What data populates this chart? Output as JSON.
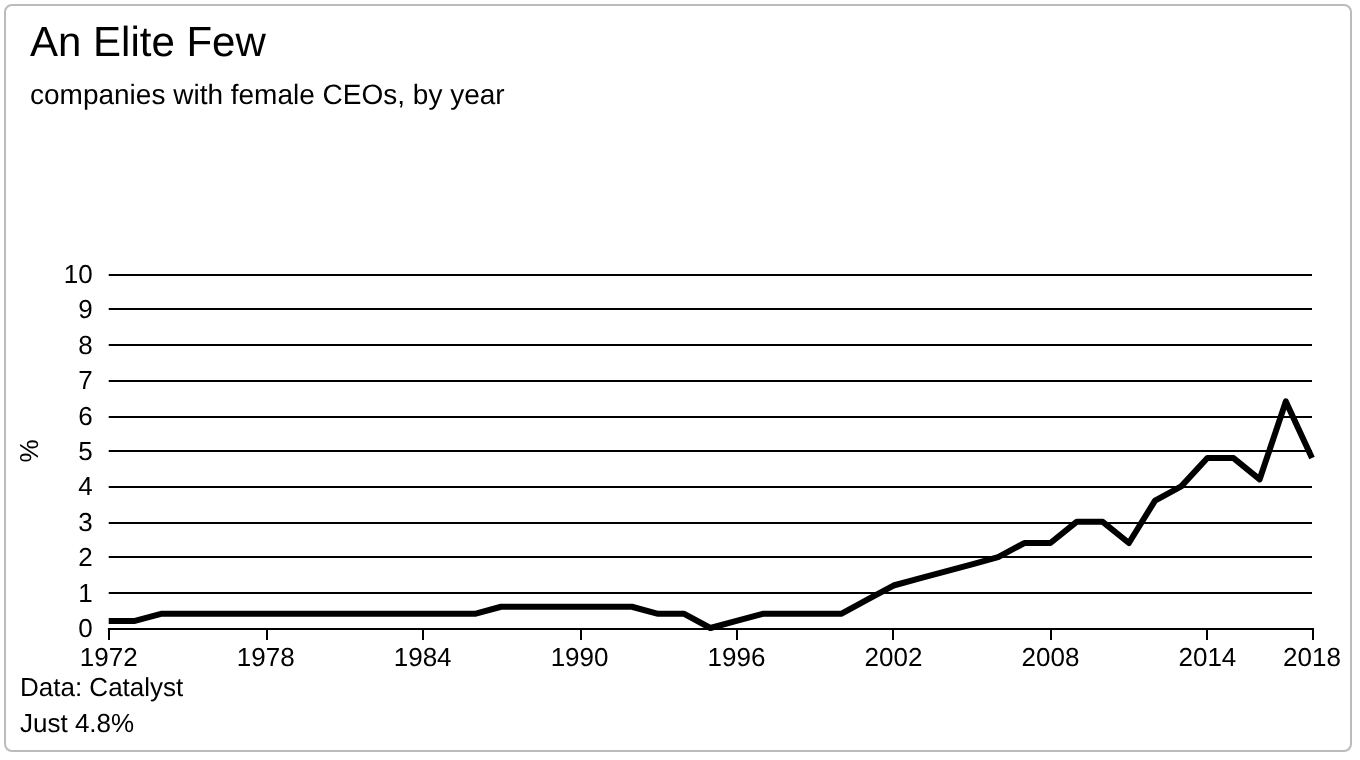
{
  "chart_data": {
    "type": "line",
    "title": "An Elite Few",
    "subtitle": "companies with female CEOs, by year",
    "ylabel": "%",
    "x": [
      1972,
      1973,
      1974,
      1975,
      1976,
      1977,
      1978,
      1979,
      1980,
      1981,
      1982,
      1983,
      1984,
      1985,
      1986,
      1987,
      1988,
      1989,
      1990,
      1991,
      1992,
      1993,
      1994,
      1995,
      1996,
      1997,
      1998,
      1999,
      2000,
      2001,
      2002,
      2003,
      2004,
      2005,
      2006,
      2007,
      2008,
      2009,
      2010,
      2011,
      2012,
      2013,
      2014,
      2015,
      2016,
      2017,
      2018
    ],
    "series": [
      {
        "color": "#000000",
        "values": [
          0.2,
          0.2,
          0.4,
          0.4,
          0.4,
          0.4,
          0.4,
          0.4,
          0.4,
          0.4,
          0.4,
          0.4,
          0.4,
          0.4,
          0.4,
          0.6,
          0.6,
          0.6,
          0.6,
          0.6,
          0.6,
          0.4,
          0.4,
          0,
          0.2,
          0.4,
          0.4,
          0.4,
          0.4,
          0.8,
          1.2,
          1.4,
          1.6,
          1.8,
          2.0,
          2.4,
          2.4,
          3.0,
          3.0,
          2.4,
          3.6,
          4.0,
          4.8,
          4.8,
          4.2,
          6.4,
          4.8
        ]
      }
    ],
    "xlim": [
      1972,
      2018
    ],
    "xticks": [
      1972,
      1978,
      1984,
      1990,
      1996,
      2002,
      2008,
      2014,
      2018
    ],
    "ylim": [
      0,
      10
    ],
    "yticks": [
      0,
      1,
      2,
      3,
      4,
      5,
      6,
      7,
      8,
      9,
      10
    ],
    "grid": "y",
    "marker": "none",
    "line_style": "solid",
    "annotations": [
      "Just 4.8%",
      "Data: Catalyst"
    ]
  }
}
